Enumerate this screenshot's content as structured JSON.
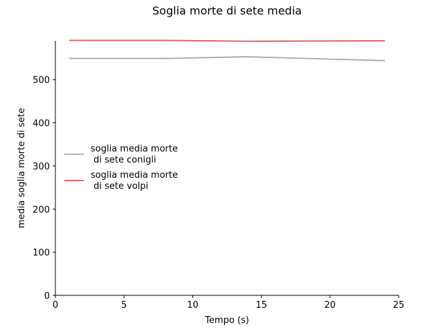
{
  "chart_data": {
    "type": "line",
    "title": "Soglia morte di sete media",
    "xlabel": "Tempo (s)",
    "ylabel": "media soglia morte di sete",
    "xlim": [
      0,
      25
    ],
    "ylim": [
      0,
      590
    ],
    "xticks": [
      0,
      5,
      10,
      15,
      20,
      25
    ],
    "yticks": [
      0,
      100,
      200,
      300,
      400,
      500
    ],
    "grid": false,
    "legend_position": "center-left",
    "series": [
      {
        "name": "soglia media morte\n di sete conigli",
        "color": "#a8a8a8",
        "x": [
          1,
          8,
          14,
          24
        ],
        "y": [
          549,
          549,
          553,
          544
        ]
      },
      {
        "name": "soglia media morte\n di sete volpi",
        "color": "#d9575c",
        "x": [
          1,
          8,
          14,
          24
        ],
        "y": [
          591,
          591,
          589,
          590
        ]
      }
    ]
  }
}
